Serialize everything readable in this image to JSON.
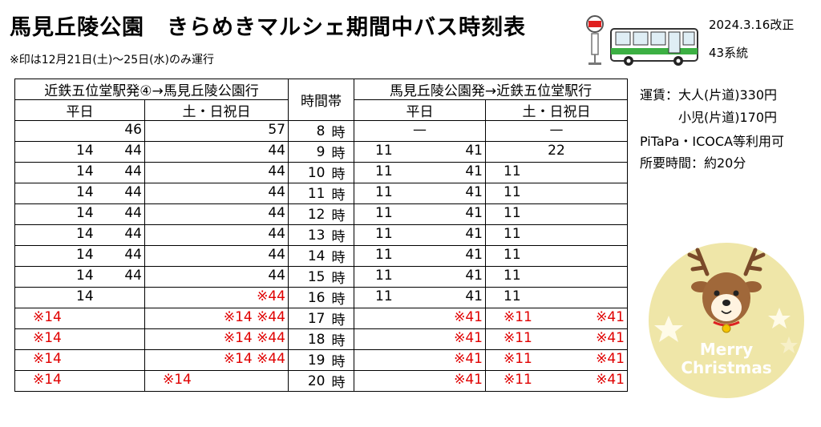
{
  "header": {
    "title": "馬見丘陵公園　きらめきマルシェ期間中バス時刻表",
    "note": "※印は12月21日(土)〜25日(水)のみ運行",
    "revision": "2024.3.16改正",
    "route": "43系統"
  },
  "table": {
    "dir1_title": "近鉄五位堂駅発④→馬見丘陵公園行",
    "dir2_title": "馬見丘陵公園発→近鉄五位堂駅行",
    "hour_title": "時間帯",
    "weekday": "平日",
    "holiday": "土・日祝日",
    "hour_unit": "時",
    "rows": [
      {
        "hour": "8",
        "a": [
          {
            "t": "46",
            "r": false,
            "p": "right"
          }
        ],
        "b": [
          {
            "t": "57",
            "r": false,
            "p": "right"
          }
        ],
        "c": [
          {
            "t": "—",
            "r": false,
            "p": "center"
          }
        ],
        "d": [
          {
            "t": "—",
            "r": false,
            "p": "center"
          }
        ]
      },
      {
        "hour": "9",
        "a": [
          {
            "t": "14",
            "r": false,
            "p": "l"
          },
          {
            "t": "44",
            "r": false,
            "p": "right"
          }
        ],
        "b": [
          {
            "t": "44",
            "r": false,
            "p": "right"
          }
        ],
        "c": [
          {
            "t": "11",
            "r": false,
            "p": "l"
          },
          {
            "t": "41",
            "r": false,
            "p": "right"
          }
        ],
        "d": [
          {
            "t": "22",
            "r": false,
            "p": "center"
          }
        ]
      },
      {
        "hour": "10",
        "a": [
          {
            "t": "14",
            "r": false,
            "p": "l"
          },
          {
            "t": "44",
            "r": false,
            "p": "right"
          }
        ],
        "b": [
          {
            "t": "44",
            "r": false,
            "p": "right"
          }
        ],
        "c": [
          {
            "t": "11",
            "r": false,
            "p": "l"
          },
          {
            "t": "41",
            "r": false,
            "p": "right"
          }
        ],
        "d": [
          {
            "t": "11",
            "r": false,
            "p": "left"
          }
        ]
      },
      {
        "hour": "11",
        "a": [
          {
            "t": "14",
            "r": false,
            "p": "l"
          },
          {
            "t": "44",
            "r": false,
            "p": "right"
          }
        ],
        "b": [
          {
            "t": "44",
            "r": false,
            "p": "right"
          }
        ],
        "c": [
          {
            "t": "11",
            "r": false,
            "p": "l"
          },
          {
            "t": "41",
            "r": false,
            "p": "right"
          }
        ],
        "d": [
          {
            "t": "11",
            "r": false,
            "p": "left"
          }
        ]
      },
      {
        "hour": "12",
        "a": [
          {
            "t": "14",
            "r": false,
            "p": "l"
          },
          {
            "t": "44",
            "r": false,
            "p": "right"
          }
        ],
        "b": [
          {
            "t": "44",
            "r": false,
            "p": "right"
          }
        ],
        "c": [
          {
            "t": "11",
            "r": false,
            "p": "l"
          },
          {
            "t": "41",
            "r": false,
            "p": "right"
          }
        ],
        "d": [
          {
            "t": "11",
            "r": false,
            "p": "left"
          }
        ]
      },
      {
        "hour": "13",
        "a": [
          {
            "t": "14",
            "r": false,
            "p": "l"
          },
          {
            "t": "44",
            "r": false,
            "p": "right"
          }
        ],
        "b": [
          {
            "t": "44",
            "r": false,
            "p": "right"
          }
        ],
        "c": [
          {
            "t": "11",
            "r": false,
            "p": "l"
          },
          {
            "t": "41",
            "r": false,
            "p": "right"
          }
        ],
        "d": [
          {
            "t": "11",
            "r": false,
            "p": "left"
          }
        ]
      },
      {
        "hour": "14",
        "a": [
          {
            "t": "14",
            "r": false,
            "p": "l"
          },
          {
            "t": "44",
            "r": false,
            "p": "right"
          }
        ],
        "b": [
          {
            "t": "44",
            "r": false,
            "p": "right"
          }
        ],
        "c": [
          {
            "t": "11",
            "r": false,
            "p": "l"
          },
          {
            "t": "41",
            "r": false,
            "p": "right"
          }
        ],
        "d": [
          {
            "t": "11",
            "r": false,
            "p": "left"
          }
        ]
      },
      {
        "hour": "15",
        "a": [
          {
            "t": "14",
            "r": false,
            "p": "l"
          },
          {
            "t": "44",
            "r": false,
            "p": "right"
          }
        ],
        "b": [
          {
            "t": "44",
            "r": false,
            "p": "right"
          }
        ],
        "c": [
          {
            "t": "11",
            "r": false,
            "p": "l"
          },
          {
            "t": "41",
            "r": false,
            "p": "right"
          }
        ],
        "d": [
          {
            "t": "11",
            "r": false,
            "p": "left"
          }
        ]
      },
      {
        "hour": "16",
        "a": [
          {
            "t": "14",
            "r": false,
            "p": "l"
          }
        ],
        "b": [
          {
            "t": "※44",
            "r": true,
            "p": "right"
          }
        ],
        "c": [
          {
            "t": "11",
            "r": false,
            "p": "l"
          },
          {
            "t": "41",
            "r": false,
            "p": "right"
          }
        ],
        "d": [
          {
            "t": "11",
            "r": false,
            "p": "left"
          }
        ]
      },
      {
        "hour": "17",
        "a": [
          {
            "t": "※14",
            "r": true,
            "p": "left"
          }
        ],
        "b": [
          {
            "t": "※14 ※44",
            "r": true,
            "p": "right"
          }
        ],
        "c": [
          {
            "t": "※41",
            "r": true,
            "p": "right"
          }
        ],
        "d": [
          {
            "t": "※11",
            "r": true,
            "p": "left"
          },
          {
            "t": "※41",
            "r": true,
            "p": "right"
          }
        ]
      },
      {
        "hour": "18",
        "a": [
          {
            "t": "※14",
            "r": true,
            "p": "left"
          }
        ],
        "b": [
          {
            "t": "※14 ※44",
            "r": true,
            "p": "right"
          }
        ],
        "c": [
          {
            "t": "※41",
            "r": true,
            "p": "right"
          }
        ],
        "d": [
          {
            "t": "※11",
            "r": true,
            "p": "left"
          },
          {
            "t": "※41",
            "r": true,
            "p": "right"
          }
        ]
      },
      {
        "hour": "19",
        "a": [
          {
            "t": "※14",
            "r": true,
            "p": "left"
          }
        ],
        "b": [
          {
            "t": "※14 ※44",
            "r": true,
            "p": "right"
          }
        ],
        "c": [
          {
            "t": "※41",
            "r": true,
            "p": "right"
          }
        ],
        "d": [
          {
            "t": "※11",
            "r": true,
            "p": "left"
          },
          {
            "t": "※41",
            "r": true,
            "p": "right"
          }
        ]
      },
      {
        "hour": "20",
        "a": [
          {
            "t": "※14",
            "r": true,
            "p": "left"
          }
        ],
        "b": [
          {
            "t": "※14",
            "r": true,
            "p": "left"
          }
        ],
        "c": [
          {
            "t": "※41",
            "r": true,
            "p": "right"
          }
        ],
        "d": [
          {
            "t": "※11",
            "r": true,
            "p": "left"
          },
          {
            "t": "※41",
            "r": true,
            "p": "right"
          }
        ]
      }
    ]
  },
  "fare": {
    "adult": "運賃：大人(片道)330円",
    "child": "小児(片道)170円",
    "ic": "PiTaPa・ICOCA等利用可",
    "duration": "所要時間：約20分"
  },
  "xmas": {
    "text1": "Merry",
    "text2": "Christmas"
  },
  "colors": {
    "accent_red": "#e00000",
    "bus_green": "#3cb043",
    "xmas_bg": "#efe6a8"
  }
}
